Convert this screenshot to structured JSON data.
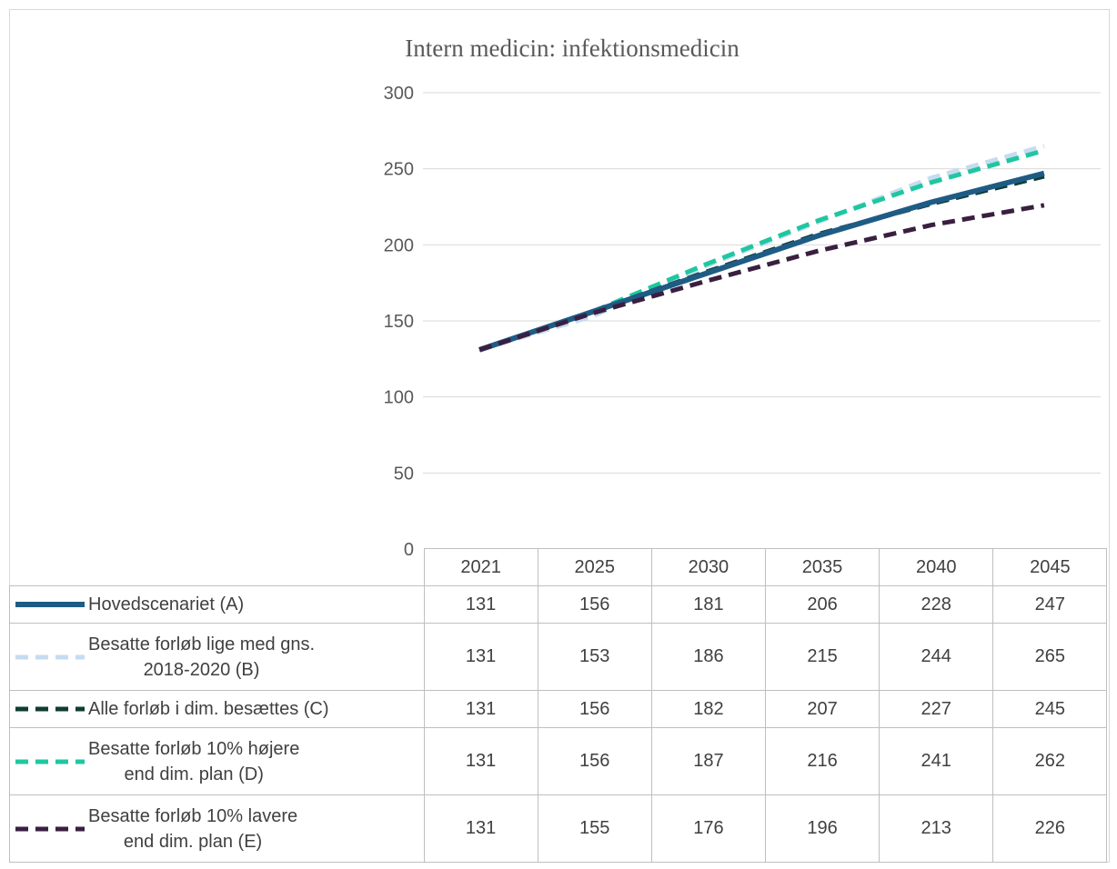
{
  "chart_data": {
    "type": "line",
    "title": "Intern medicin: infektionsmedicin",
    "categories": [
      "2021",
      "2025",
      "2030",
      "2035",
      "2040",
      "2045"
    ],
    "ylim": [
      0,
      300
    ],
    "yticks": [
      "0",
      "50",
      "100",
      "150",
      "200",
      "250",
      "300"
    ],
    "grid": true,
    "legend_placement": "data-table",
    "series": [
      {
        "name": "Hovedscenariet (A)",
        "values": [
          131,
          156,
          181,
          206,
          228,
          247
        ],
        "color": "#1f5c85",
        "style": "solid",
        "label_lines": [
          "Hovedscenariet (A)"
        ]
      },
      {
        "name": "Besatte forløb lige med gns. 2018-2020 (B)",
        "values": [
          131,
          153,
          186,
          215,
          244,
          265
        ],
        "color": "#c5dcf0",
        "style": "dashed",
        "label_lines": [
          "Besatte forløb lige med gns.",
          "2018-2020 (B)"
        ]
      },
      {
        "name": "Alle forløb i dim. besættes (C)",
        "values": [
          131,
          156,
          182,
          207,
          227,
          245
        ],
        "color": "#0f3d34",
        "style": "dashed",
        "label_lines": [
          "Alle forløb i dim. besættes (C)"
        ]
      },
      {
        "name": "Besatte forløb 10% højere end dim. plan (D)",
        "values": [
          131,
          156,
          187,
          216,
          241,
          262
        ],
        "color": "#1fc7a0",
        "style": "dashed",
        "label_lines": [
          "Besatte forløb 10% højere",
          "end dim. plan (D)"
        ]
      },
      {
        "name": "Besatte forløb 10% lavere end dim. plan (E)",
        "values": [
          131,
          155,
          176,
          196,
          213,
          226
        ],
        "color": "#3a1f40",
        "style": "dashed",
        "label_lines": [
          "Besatte forløb 10% lavere",
          "end dim. plan (E)"
        ]
      }
    ]
  }
}
